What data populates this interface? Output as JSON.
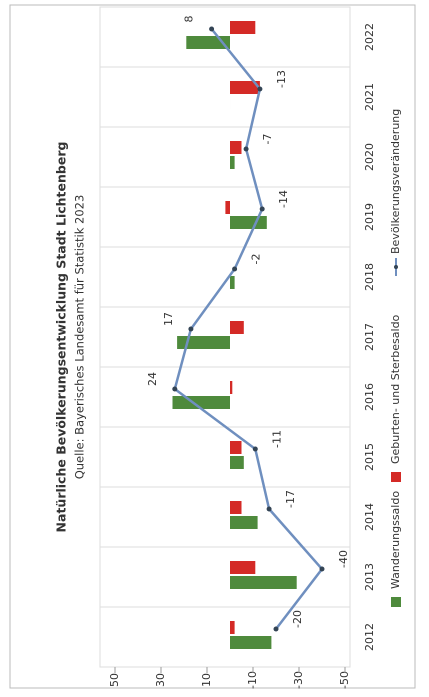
{
  "chart_data": {
    "type": "bar",
    "title": "Natürliche Bevölkerungsentwicklung Stadt Lichtenberg",
    "subtitle": "Quelle: Bayerisches Landesamt für Statistik 2023",
    "categories": [
      "2012",
      "2013",
      "2014",
      "2015",
      "2016",
      "2017",
      "2018",
      "2019",
      "2020",
      "2021",
      "2022"
    ],
    "series": [
      {
        "name": "Wanderungssaldo",
        "type": "bar",
        "color": "#4e8a3c",
        "values": [
          -18,
          -29,
          -12,
          -6,
          25,
          23,
          -2,
          -16,
          -2,
          0,
          19
        ]
      },
      {
        "name": "Geburten- und Sterbesaldo",
        "type": "bar",
        "color": "#d42a26",
        "values": [
          -2,
          -11,
          -5,
          -5,
          -1,
          -6,
          0,
          2,
          -5,
          -13,
          -11
        ]
      },
      {
        "name": "Bevölkerungsveränderung",
        "type": "line",
        "color": "#6f8fbf",
        "values": [
          -20,
          -40,
          -17,
          -11,
          24,
          17,
          -2,
          -14,
          -7,
          -13,
          8
        ]
      }
    ],
    "ylim": [
      -50,
      50
    ],
    "yticks": [
      50,
      30,
      10,
      -10,
      -30,
      -50
    ],
    "grid": false
  }
}
